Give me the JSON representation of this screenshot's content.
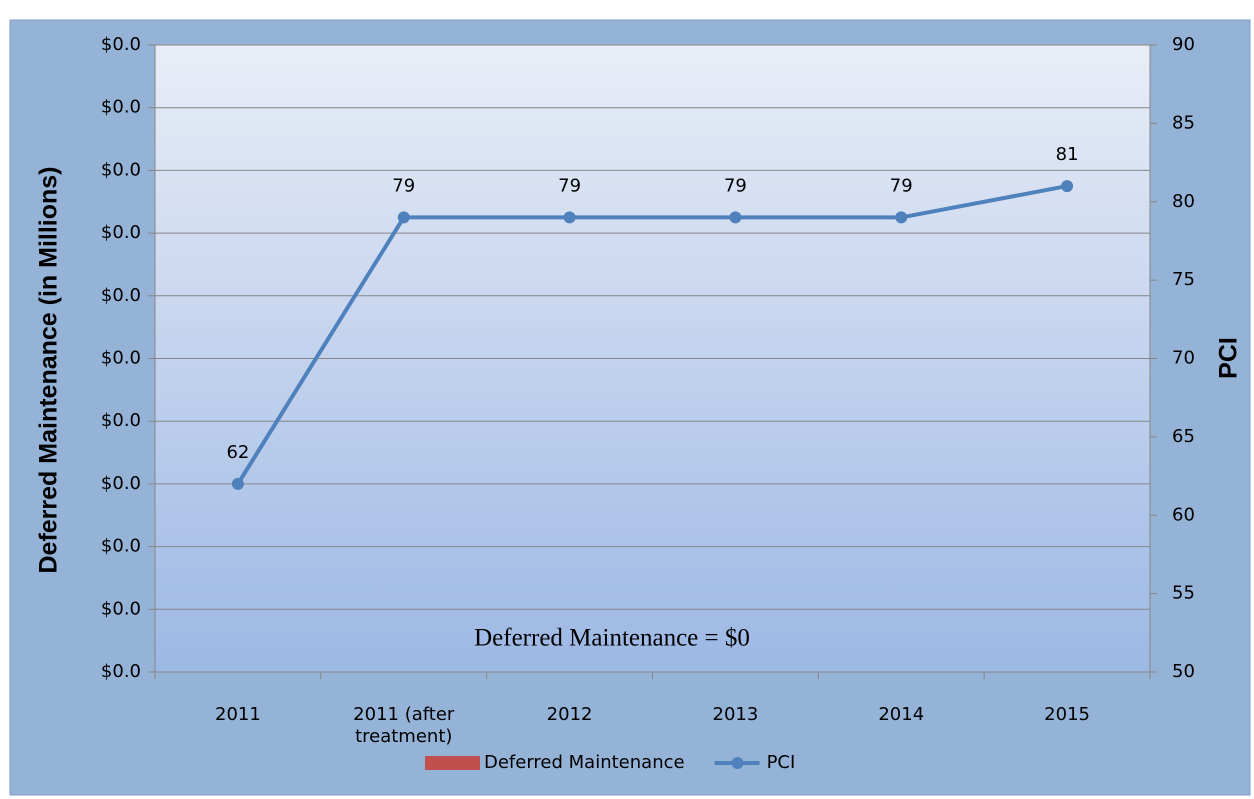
{
  "chart_data": {
    "type": "line",
    "categories": [
      "2011",
      "2011 (after treatment)",
      "2012",
      "2013",
      "2014",
      "2015"
    ],
    "series": [
      {
        "name": "Deferred Maintenance",
        "type": "bar",
        "color": "#c0504d",
        "values": [
          0,
          0,
          0,
          0,
          0,
          0
        ]
      },
      {
        "name": "PCI",
        "type": "line",
        "color": "#4f81bd",
        "axis": "y2",
        "values": [
          62,
          79,
          79,
          79,
          79,
          81
        ]
      }
    ],
    "ylabel": "Deferred Maintenance (in Millions)",
    "y2label": "PCI",
    "ylim": [
      0,
      0.04
    ],
    "yticks": [
      {
        "value": 0,
        "label": "$0.0"
      },
      {
        "value": 0.004,
        "label": "$0.0"
      },
      {
        "value": 0.008,
        "label": "$0.0"
      },
      {
        "value": 0.012,
        "label": "$0.0"
      },
      {
        "value": 0.016,
        "label": "$0.0"
      },
      {
        "value": 0.02,
        "label": "$0.0"
      },
      {
        "value": 0.024,
        "label": "$0.0"
      },
      {
        "value": 0.028,
        "label": "$0.0"
      },
      {
        "value": 0.032,
        "label": "$0.0"
      },
      {
        "value": 0.036,
        "label": "$0.0"
      },
      {
        "value": 0.04,
        "label": "$0.0"
      }
    ],
    "y2lim": [
      50,
      90
    ],
    "y2ticks": [
      50,
      55,
      60,
      65,
      70,
      75,
      80,
      85,
      90
    ],
    "annotation": "Deferred Maintenance = $0",
    "grid": true,
    "legend": "bottom"
  }
}
